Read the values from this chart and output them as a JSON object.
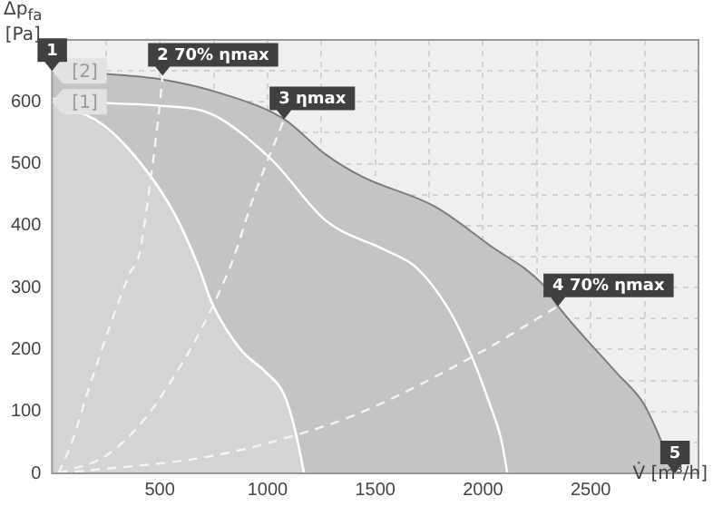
{
  "chart_data": {
    "type": "area",
    "xlabel": "V̇ [m³/h]",
    "ylabel": "Δp$_{fa}$ [Pa]",
    "xlim": [
      0,
      3000
    ],
    "ylim": [
      0,
      700
    ],
    "xticks": [
      {
        "value": 250,
        "label": null
      },
      500,
      {
        "value": 750,
        "label": null
      },
      1000,
      {
        "value": 1250,
        "label": null
      },
      1500,
      {
        "value": 1750,
        "label": null
      },
      2000,
      {
        "value": 2250,
        "label": null
      },
      2500,
      {
        "value": 2750,
        "label": null
      }
    ],
    "yticks": [
      0,
      {
        "value": 50,
        "label": null
      },
      100,
      {
        "value": 150,
        "label": null
      },
      200,
      {
        "value": 250,
        "label": null
      },
      300,
      {
        "value": 350,
        "label": null
      },
      400,
      {
        "value": 450,
        "label": null
      },
      500,
      {
        "value": 550,
        "label": null
      },
      600,
      {
        "value": 650,
        "label": null
      }
    ],
    "grid": true,
    "legend": "top left",
    "marker": "none",
    "series": [
      {
        "name": "[2]",
        "color": "#c4c4c4",
        "x": [
          0,
          250,
          513,
          800,
          1077,
          1270,
          1440,
          1776,
          2028,
          2280,
          2348,
          2618,
          2750,
          2890
        ],
        "values": [
          650,
          645,
          636,
          612,
          572,
          515,
          479,
          431,
          369,
          304,
          270,
          163,
          110,
          0
        ]
      },
      {
        "name": "[1]",
        "color": "#d4d4d4",
        "x": [
          0,
          236,
          429,
          572,
          682,
          741,
          875,
          993,
          1077,
          1128,
          1170
        ],
        "values": [
          600,
          563,
          493,
          417,
          332,
          276,
          200,
          163,
          127,
          70,
          0
        ]
      },
      {
        "type": "line",
        "color": "#ffffff",
        "x": [
          0,
          250,
          488,
          741,
          1018,
          1271,
          1550,
          1692,
          1835,
          1944,
          2028,
          2087,
          2113
        ],
        "values": [
          605,
          598,
          594,
          580,
          507,
          408,
          360,
          332,
          268,
          192,
          115,
          51,
          0
        ]
      },
      {
        "type": "line",
        "line_style": "dashed",
        "color": "#f4f4f4",
        "x": [
          30,
          93,
          177,
          362,
          404,
          446,
          497,
          513
        ],
        "values": [
          0,
          51,
          144,
          324,
          352,
          445,
          586,
          642
        ]
      },
      {
        "type": "line",
        "line_style": "dashed",
        "color": "#f4f4f4",
        "x": [
          30,
          261,
          488,
          825,
          934,
          1077
        ],
        "values": [
          0,
          31,
          115,
          332,
          445,
          572
        ]
      },
      {
        "type": "line",
        "line_style": "dashed",
        "color": "#f4f4f4",
        "x": [
          30,
          741,
          1162,
          1439,
          1970,
          2348
        ],
        "values": [
          0,
          28,
          65,
          99,
          192,
          270
        ]
      }
    ],
    "annotations": [
      {
        "text": "1",
        "x": 0,
        "y": 650
      },
      {
        "text": "2 70% ηmax",
        "x": 513,
        "y": 642
      },
      {
        "text": "3 ηmax",
        "x": 1077,
        "y": 572
      },
      {
        "text": "4 70% ηmax",
        "x": 2348,
        "y": 270
      },
      {
        "text": "5",
        "x": 2890,
        "y": 0
      }
    ]
  }
}
